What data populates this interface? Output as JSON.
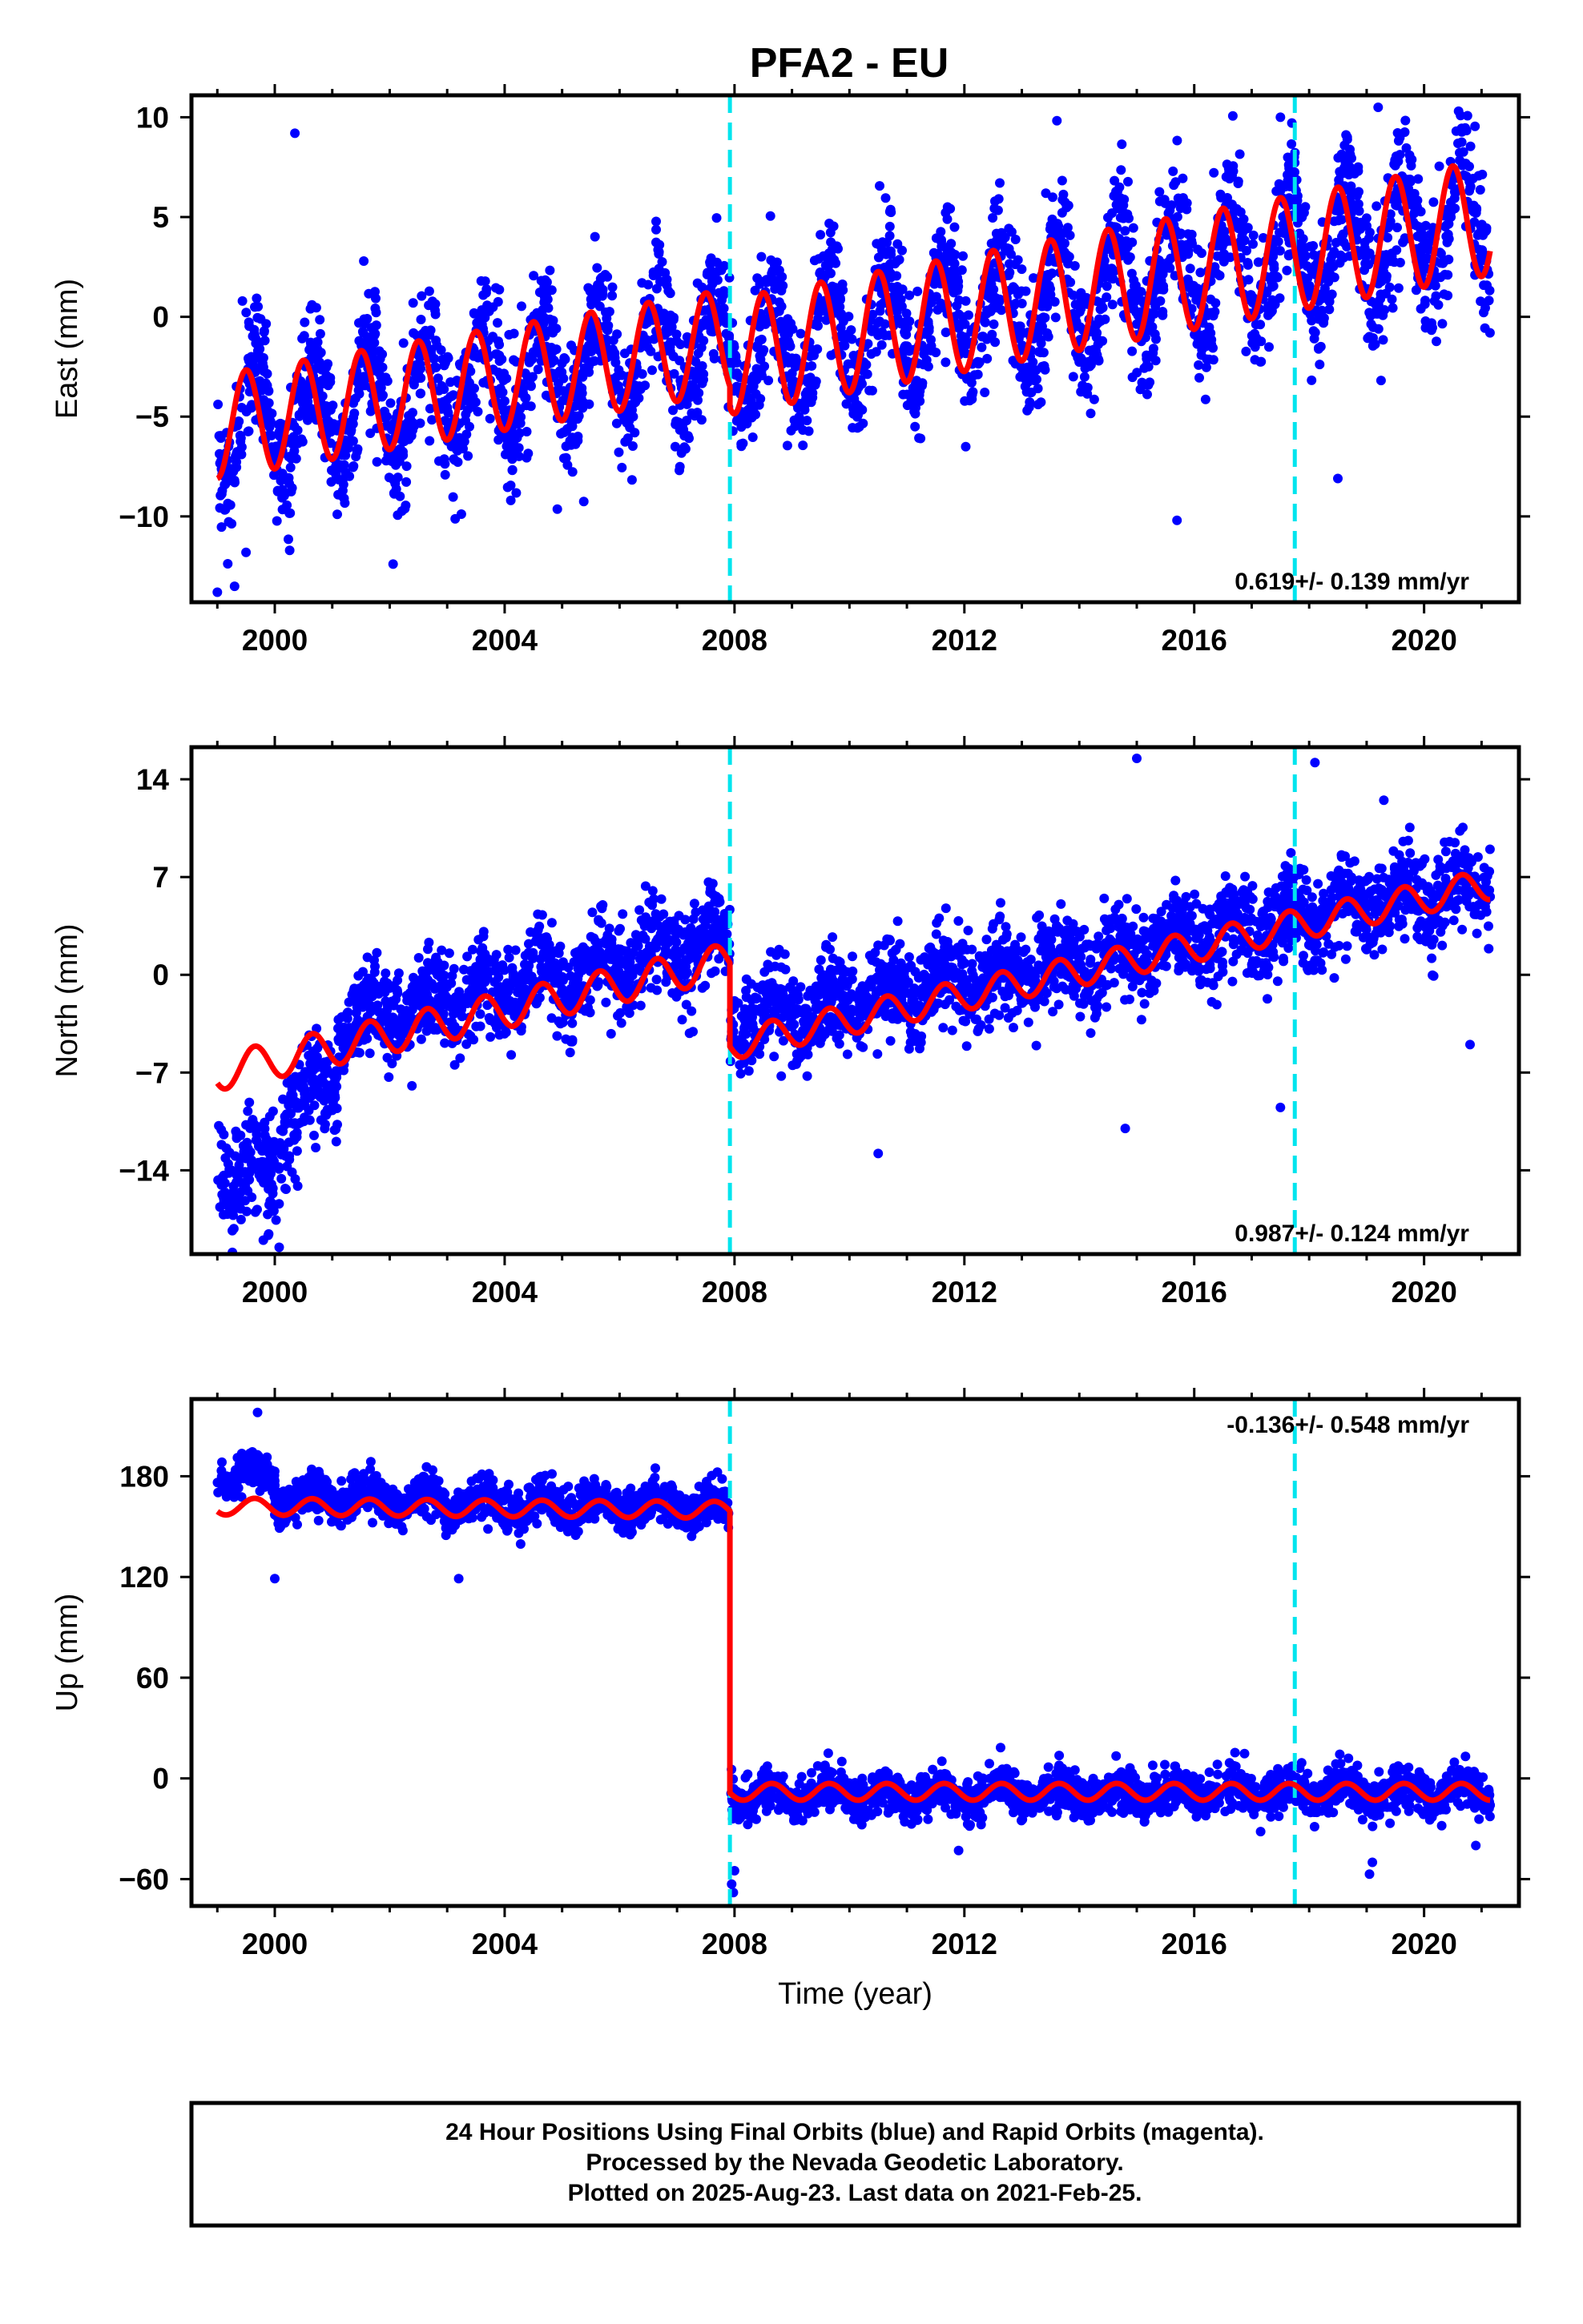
{
  "title": "PFA2 - EU",
  "colors": {
    "points": "#0000ff",
    "fit": "#ff0000",
    "offset_line": "#00e5ee",
    "frame": "#000000"
  },
  "footer": {
    "line1": "24 Hour Positions Using Final Orbits (blue) and Rapid Orbits (magenta).",
    "line2": "Processed by the Nevada Geodetic Laboratory.",
    "line3": "Plotted on 2025-Aug-23. Last data on 2021-Feb-25."
  },
  "chart_data": [
    {
      "type": "scatter",
      "ylabel": "East (mm)",
      "xlabel": "",
      "rate_text": "0.619+/- 0.139 mm/yr",
      "rate_position": "bottom-right",
      "xlim": [
        1998.55,
        2021.65
      ],
      "ylim": [
        -14.3,
        11.1
      ],
      "x_ticks": [
        2000,
        2004,
        2008,
        2012,
        2016,
        2020
      ],
      "x_tick_labels": [
        "2000",
        "2004",
        "2008",
        "2012",
        "2016",
        "2020"
      ],
      "y_ticks": [
        -10,
        -5,
        0,
        5,
        10
      ],
      "y_tick_labels": [
        "−10",
        "−5",
        "0",
        "5",
        "10"
      ],
      "offset_lines": [
        2007.92,
        2017.75
      ],
      "fit": {
        "name": "model",
        "segments": [
          {
            "x_start": 1999.0,
            "x_end": 2007.92,
            "trend": [
              [
                1999.0,
                -5.5
              ],
              [
                2007.92,
                -1.2
              ]
            ],
            "amplitude": 2.6,
            "phase_year": 1999.25
          },
          {
            "x_start": 2007.92,
            "x_end": 2021.15,
            "trend": [
              [
                2007.92,
                -2.0
              ],
              [
                2021.15,
                5.0
              ]
            ],
            "amplitude": 2.9,
            "phase_year": 1999.25
          }
        ]
      },
      "points": {
        "name": "daily positions",
        "x_range": [
          1999.0,
          2021.15
        ],
        "segments": [
          {
            "x_start": 1999.0,
            "x_end": 2007.92,
            "trend": [
              [
                1999.0,
                -5.5
              ],
              [
                2007.92,
                -1.2
              ]
            ],
            "amplitude": 2.6,
            "scatter_sd": 1.6
          },
          {
            "x_start": 2007.92,
            "x_end": 2021.15,
            "trend": [
              [
                2007.92,
                -2.0
              ],
              [
                2021.15,
                5.0
              ]
            ],
            "amplitude": 2.9,
            "scatter_sd": 1.6
          }
        ],
        "outliers": [
          [
            2000.35,
            9.2
          ],
          [
            1999.0,
            -13.8
          ],
          [
            1999.3,
            -13.5
          ],
          [
            2015.7,
            -10.2
          ],
          [
            2019.2,
            10.5
          ],
          [
            2020.6,
            10.3
          ],
          [
            2017.5,
            10.0
          ],
          [
            2018.5,
            -8.1
          ],
          [
            1999.5,
            -11.8
          ]
        ]
      }
    },
    {
      "type": "scatter",
      "ylabel": "North (mm)",
      "xlabel": "",
      "rate_text": "0.987+/- 0.124 mm/yr",
      "rate_position": "bottom-right",
      "xlim": [
        1998.55,
        2021.65
      ],
      "ylim": [
        -20.0,
        16.3
      ],
      "x_ticks": [
        2000,
        2004,
        2008,
        2012,
        2016,
        2020
      ],
      "x_tick_labels": [
        "2000",
        "2004",
        "2008",
        "2012",
        "2016",
        "2020"
      ],
      "y_ticks": [
        -14,
        -7,
        0,
        7,
        14
      ],
      "y_tick_labels": [
        "−14",
        "−7",
        "0",
        "7",
        "14"
      ],
      "offset_lines": [
        2007.92,
        2017.75
      ],
      "fit": {
        "name": "model",
        "segments": [
          {
            "x_start": 1999.0,
            "x_end": 2007.92,
            "trend": [
              [
                1999.0,
                -7.0
              ],
              [
                2007.92,
                1.0
              ]
            ],
            "amplitude": 1.3,
            "phase_year": 1999.4
          },
          {
            "x_start": 2007.92,
            "x_end": 2021.15,
            "trend": [
              [
                2007.92,
                -5.0
              ],
              [
                2021.15,
                6.5
              ]
            ],
            "amplitude": 1.1,
            "phase_year": 1999.4
          }
        ]
      },
      "points": {
        "name": "daily positions",
        "x_range": [
          1999.0,
          2021.15
        ],
        "segments": [
          {
            "x_start": 1999.0,
            "x_end": 2000.1,
            "trend": [
              [
                1999.0,
                -14.5
              ],
              [
                2000.1,
                -13.5
              ]
            ],
            "amplitude": 1.0,
            "scatter_sd": 2.0
          },
          {
            "x_start": 2000.1,
            "x_end": 2001.1,
            "trend": [
              [
                2000.1,
                -10.5
              ],
              [
                2001.1,
                -7.5
              ]
            ],
            "amplitude": 1.0,
            "scatter_sd": 2.0
          },
          {
            "x_start": 2001.1,
            "x_end": 2007.92,
            "trend": [
              [
                2001.1,
                -3.5
              ],
              [
                2007.92,
                2.5
              ]
            ],
            "amplitude": 1.2,
            "scatter_sd": 1.6
          },
          {
            "x_start": 2007.92,
            "x_end": 2021.15,
            "trend": [
              [
                2007.92,
                -3.5
              ],
              [
                2021.15,
                6.5
              ]
            ],
            "amplitude": 1.1,
            "scatter_sd": 1.6
          }
        ],
        "outliers": [
          [
            2015.0,
            15.5
          ],
          [
            2018.1,
            15.2
          ],
          [
            2010.5,
            -12.8
          ],
          [
            2017.5,
            -9.5
          ],
          [
            2014.8,
            -11.0
          ],
          [
            2019.3,
            12.5
          ],
          [
            2020.8,
            -5.0
          ],
          [
            1999.8,
            -19.0
          ]
        ]
      }
    },
    {
      "type": "scatter",
      "ylabel": "Up (mm)",
      "xlabel": "Time (year)",
      "rate_text": "-0.136+/- 0.548 mm/yr",
      "rate_position": "top-right",
      "xlim": [
        1998.55,
        2021.65
      ],
      "ylim": [
        -76,
        226
      ],
      "x_ticks": [
        2000,
        2004,
        2008,
        2012,
        2016,
        2020
      ],
      "x_tick_labels": [
        "2000",
        "2004",
        "2008",
        "2012",
        "2016",
        "2020"
      ],
      "y_ticks": [
        -60,
        0,
        60,
        120,
        180
      ],
      "y_tick_labels": [
        "−60",
        "0",
        "60",
        "120",
        "180"
      ],
      "offset_lines": [
        2007.92,
        2017.75
      ],
      "fit": {
        "name": "model",
        "segments": [
          {
            "x_start": 1999.0,
            "x_end": 2007.92,
            "trend": [
              [
                1999.0,
                162
              ],
              [
                2007.92,
                160
              ]
            ],
            "amplitude": 5,
            "phase_year": 1999.4
          },
          {
            "x_start": 2007.92,
            "x_end": 2021.15,
            "trend": [
              [
                2007.92,
                -8
              ],
              [
                2021.15,
                -8
              ]
            ],
            "amplitude": 5,
            "phase_year": 1999.4
          }
        ]
      },
      "points": {
        "name": "daily positions",
        "x_range": [
          1999.0,
          2021.15
        ],
        "segments": [
          {
            "x_start": 1999.0,
            "x_end": 2000.0,
            "trend": [
              [
                1999.0,
                182
              ],
              [
                2000.0,
                180
              ]
            ],
            "amplitude": 5,
            "scatter_sd": 5
          },
          {
            "x_start": 2000.0,
            "x_end": 2007.92,
            "trend": [
              [
                2000.0,
                168
              ],
              [
                2007.92,
                160
              ]
            ],
            "amplitude": 6,
            "scatter_sd": 6
          },
          {
            "x_start": 2007.92,
            "x_end": 2021.15,
            "trend": [
              [
                2007.92,
                -10
              ],
              [
                2021.15,
                -8
              ]
            ],
            "amplitude": 5,
            "scatter_sd": 6
          }
        ],
        "outliers": [
          [
            1999.7,
            218
          ],
          [
            2000.0,
            119
          ],
          [
            2003.2,
            119
          ],
          [
            2007.95,
            -63
          ],
          [
            2007.98,
            -68
          ],
          [
            2011.9,
            -43
          ],
          [
            2019.05,
            -57
          ],
          [
            2019.1,
            -50
          ],
          [
            2020.9,
            -40
          ],
          [
            2008.0,
            -55
          ]
        ]
      }
    }
  ]
}
